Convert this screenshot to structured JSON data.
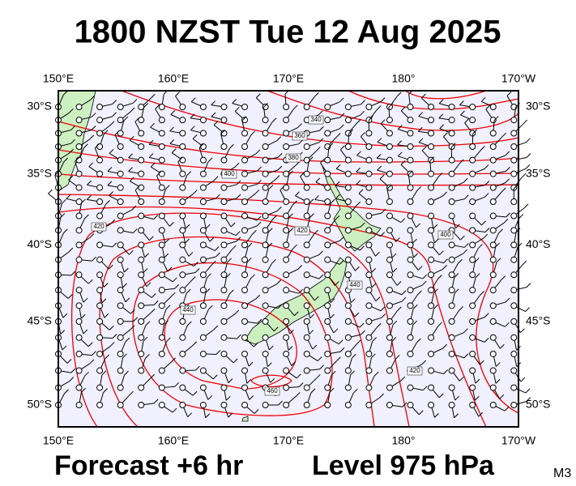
{
  "header": {
    "title": "1800 NZST Tue 12 Aug 2025"
  },
  "map": {
    "lon_ticks": [
      "150°E",
      "160°E",
      "170°E",
      "180°",
      "170°W"
    ],
    "lat_ticks": [
      "30°S",
      "35°S",
      "40°S",
      "45°S",
      "50°S"
    ],
    "contour_labels": [
      "340",
      "360",
      "380",
      "400",
      "420",
      "420",
      "400",
      "440",
      "440",
      "460",
      "420"
    ]
  },
  "footer": {
    "forecast": "Forecast +6 hr",
    "level": "Level 975 hPa",
    "code": "M3"
  }
}
